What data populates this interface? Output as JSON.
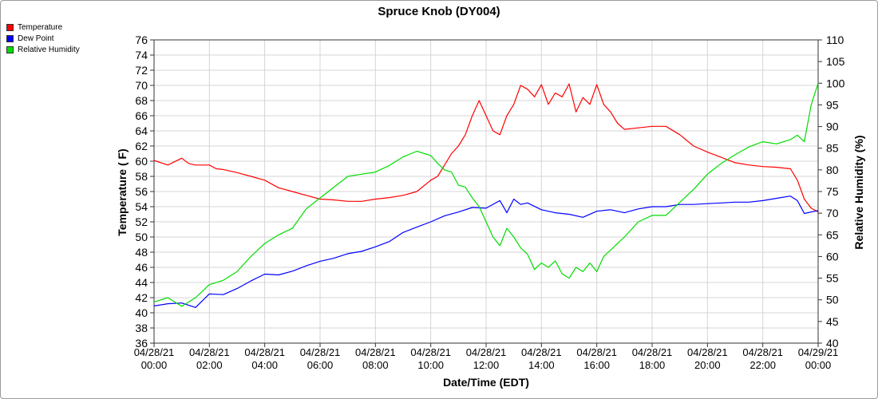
{
  "chart_data": {
    "type": "line",
    "title": "Spruce Knob (DY004)",
    "xlabel": "Date/Time (EDT)",
    "ylabel": "Temperature ( F)",
    "y2label": "Relative Humidity (%)",
    "ylim": [
      36,
      76
    ],
    "y2lim": [
      40,
      110
    ],
    "xlim_hours": [
      0,
      24
    ],
    "grid": true,
    "legend_position": "top-left",
    "x_ticks": [
      {
        "date": "04/28/21",
        "time": "00:00"
      },
      {
        "date": "04/28/21",
        "time": "02:00"
      },
      {
        "date": "04/28/21",
        "time": "04:00"
      },
      {
        "date": "04/28/21",
        "time": "06:00"
      },
      {
        "date": "04/28/21",
        "time": "08:00"
      },
      {
        "date": "04/28/21",
        "time": "10:00"
      },
      {
        "date": "04/28/21",
        "time": "12:00"
      },
      {
        "date": "04/28/21",
        "time": "14:00"
      },
      {
        "date": "04/28/21",
        "time": "16:00"
      },
      {
        "date": "04/28/21",
        "time": "18:00"
      },
      {
        "date": "04/28/21",
        "time": "20:00"
      },
      {
        "date": "04/28/21",
        "time": "22:00"
      },
      {
        "date": "04/29/21",
        "time": "00:00"
      }
    ],
    "y_ticks": [
      36,
      38,
      40,
      42,
      44,
      46,
      48,
      50,
      52,
      54,
      56,
      58,
      60,
      62,
      64,
      66,
      68,
      70,
      72,
      74,
      76
    ],
    "y2_ticks": [
      40,
      45,
      50,
      55,
      60,
      65,
      70,
      75,
      80,
      85,
      90,
      95,
      100,
      105,
      110
    ],
    "series": [
      {
        "name": "Temperature",
        "color": "#ff0000",
        "axis": "left",
        "x": [
          0,
          0.5,
          1,
          1.25,
          1.5,
          2,
          2.25,
          2.5,
          3,
          3.5,
          4,
          4.5,
          5,
          5.5,
          6,
          6.5,
          7,
          7.5,
          8,
          8.5,
          9,
          9.5,
          10,
          10.25,
          10.5,
          10.75,
          11,
          11.25,
          11.5,
          11.75,
          12,
          12.25,
          12.5,
          12.75,
          13,
          13.25,
          13.5,
          13.75,
          14,
          14.25,
          14.5,
          14.75,
          15,
          15.25,
          15.5,
          15.75,
          16,
          16.25,
          16.5,
          16.75,
          17,
          17.5,
          18,
          18.5,
          19,
          19.5,
          20,
          20.5,
          21,
          21.5,
          22,
          22.5,
          23,
          23.25,
          23.5,
          23.75,
          24
        ],
        "values": [
          60.1,
          59.5,
          60.4,
          59.7,
          59.5,
          59.5,
          59,
          58.9,
          58.5,
          58,
          57.5,
          56.5,
          56,
          55.5,
          55,
          54.9,
          54.7,
          54.7,
          55,
          55.2,
          55.5,
          56,
          57.5,
          58,
          59.5,
          61,
          62,
          63.5,
          66,
          68,
          66,
          64,
          63.5,
          66,
          67.5,
          70,
          69.5,
          68.5,
          70.1,
          67.5,
          69,
          68.5,
          70.2,
          66.5,
          68.4,
          67.5,
          70.1,
          67.5,
          66.5,
          65,
          64.2,
          64.4,
          64.6,
          64.6,
          63.5,
          62,
          61.2,
          60.5,
          59.8,
          59.5,
          59.3,
          59.2,
          59,
          57.5,
          55,
          53.8,
          53.3
        ]
      },
      {
        "name": "Dew Point",
        "color": "#0000ff",
        "axis": "left",
        "x": [
          0,
          0.5,
          1,
          1.5,
          2,
          2.5,
          3,
          3.5,
          4,
          4.5,
          5,
          5.5,
          6,
          6.5,
          7,
          7.5,
          8,
          8.5,
          9,
          9.5,
          10,
          10.5,
          11,
          11.5,
          12,
          12.5,
          12.75,
          13,
          13.25,
          13.5,
          14,
          14.5,
          15,
          15.5,
          16,
          16.5,
          17,
          17.5,
          18,
          18.5,
          19,
          19.5,
          20,
          20.5,
          21,
          21.5,
          22,
          22.5,
          23,
          23.25,
          23.5,
          24
        ],
        "values": [
          40.9,
          41.2,
          41.3,
          40.7,
          42.5,
          42.4,
          43.2,
          44.2,
          45.1,
          45,
          45.5,
          46.2,
          46.8,
          47.2,
          47.8,
          48.1,
          48.7,
          49.4,
          50.6,
          51.3,
          52,
          52.8,
          53.3,
          53.9,
          53.8,
          54.8,
          53.2,
          55,
          54.3,
          54.5,
          53.6,
          53.2,
          53,
          52.6,
          53.4,
          53.6,
          53.2,
          53.7,
          54,
          54,
          54.3,
          54.3,
          54.4,
          54.5,
          54.6,
          54.6,
          54.8,
          55.1,
          55.4,
          54.8,
          53.1,
          53.5
        ]
      },
      {
        "name": "Relative Humidity",
        "color": "#00dd00",
        "axis": "right",
        "x": [
          0,
          0.5,
          1,
          1.5,
          2,
          2.5,
          3,
          3.5,
          4,
          4.5,
          5,
          5.5,
          6,
          6.5,
          7,
          7.5,
          8,
          8.5,
          9,
          9.5,
          10,
          10.25,
          10.5,
          10.75,
          11,
          11.25,
          11.5,
          11.75,
          12,
          12.25,
          12.5,
          12.75,
          13,
          13.25,
          13.5,
          13.75,
          14,
          14.25,
          14.5,
          14.75,
          15,
          15.25,
          15.5,
          15.75,
          16,
          16.25,
          16.5,
          16.75,
          17,
          17.5,
          18,
          18.5,
          19,
          19.5,
          20,
          20.5,
          21,
          21.5,
          22,
          22.5,
          23,
          23.25,
          23.5,
          23.75,
          24
        ],
        "values": [
          49.5,
          50.5,
          48.5,
          50.5,
          53.5,
          54.5,
          56.5,
          60,
          63,
          65,
          66.5,
          71,
          73.5,
          76,
          78.5,
          79,
          79.5,
          81,
          83,
          84.3,
          83.3,
          81.5,
          80,
          79.5,
          76.5,
          76,
          73.5,
          71.5,
          68,
          64.5,
          62.5,
          66.5,
          64.5,
          62,
          60.5,
          57,
          58.5,
          57.5,
          59,
          56,
          55,
          57.5,
          56.5,
          58.5,
          56.5,
          60,
          61.5,
          63,
          64.5,
          68,
          69.5,
          69.5,
          72.5,
          75.5,
          79,
          81.5,
          83.5,
          85.3,
          86.5,
          86,
          87,
          88,
          86.5,
          95,
          100
        ]
      }
    ]
  }
}
